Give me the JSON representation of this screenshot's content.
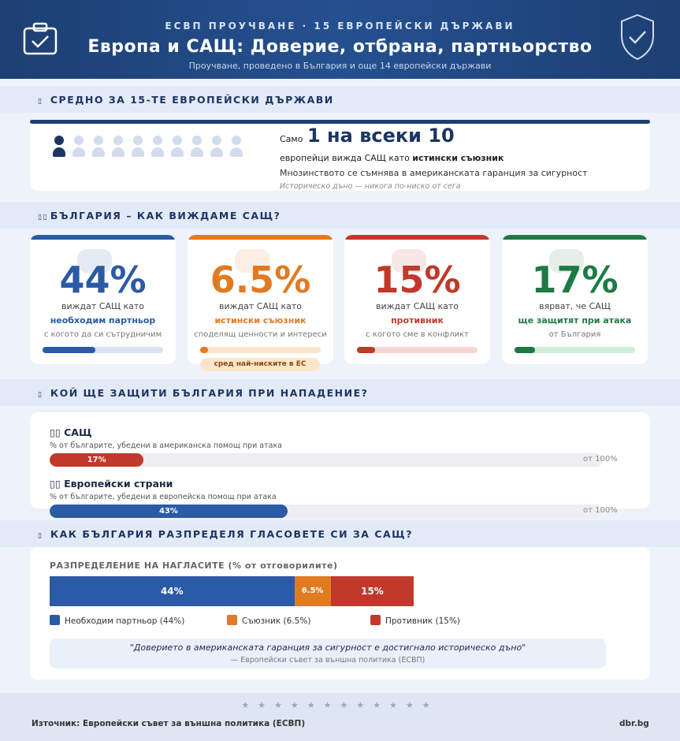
{
  "header": {
    "kicker": "ЕСВП ПРОУЧВАНЕ · 15 ЕВРОПЕЙСКИ ДЪРЖАВИ",
    "title": "Европа и САЩ: Доверие, отбрана, партньорство",
    "subtitle": "Проучване, проведено в България и още 14 европейски държави"
  },
  "section_avg": {
    "heading": "СРЕДНО ЗА 15-ТЕ ЕВРОПЕЙСКИ ДЪРЖАВИ",
    "prefix": "Само",
    "highlight": "1 на всеки 10",
    "line1_a": "европейци вижда САЩ като ",
    "line1_b": "истински съюзник",
    "line2": "Мнозинството се съмнява в американската гаранция за сигурност",
    "line3": "Историческо дъно — никога по-ниско от сега",
    "icons_filled": 1,
    "icons_total": 10
  },
  "section_bg": {
    "heading": "БЪЛГАРИЯ – КАК ВИЖДАМЕ САЩ?",
    "cards": [
      {
        "value": "44%",
        "pct": 44,
        "line1": "виждат САЩ като",
        "line2": "необходим партньор",
        "line3": "с когото да си сътрудничим",
        "color": "#2b5aa6",
        "track": "#dbe4f4"
      },
      {
        "value": "6.5%",
        "pct": 6.5,
        "line1": "виждат САЩ като",
        "line2": "истински съюзник",
        "line3": "споделящ ценности и интереси",
        "color": "#e07b22",
        "track": "#fbe6cc"
      },
      {
        "value": "15%",
        "pct": 15,
        "line1": "виждат САЩ като",
        "line2": "противник",
        "line3": "с когото сме в конфликт",
        "color": "#c0392b",
        "track": "#f6d6d3"
      },
      {
        "value": "17%",
        "pct": 17,
        "line1": "вярват, че САЩ",
        "line2": "ще защитят при атака",
        "line3": "от България",
        "color": "#1e7a45",
        "track": "#cfeedc"
      }
    ],
    "note": "сред най-ниските в ЕС"
  },
  "section_defense": {
    "heading": "КОЙ ЩЕ ЗАЩИТИ БЪЛГАРИЯ ПРИ НАПАДЕНИЕ?",
    "rows": [
      {
        "title": "САЩ",
        "sub": "% от българите, убедени в американска помощ при атака",
        "value": 17,
        "label": "17%",
        "out_of": "от 100%",
        "color": "#c0392b"
      },
      {
        "title": "Европейски страни",
        "sub": "% от българите, убедени в европейска помощ при атака",
        "value": 43,
        "label": "43%",
        "out_of": "от 100%",
        "color": "#2b5aa6"
      }
    ]
  },
  "section_votes": {
    "heading": "КАК БЪЛГАРИЯ РАЗПРЕДЕЛЯ ГЛАСОВЕТЕ СИ ЗА САЩ?",
    "chart_title": "РАЗПРЕДЕЛЕНИЕ НА НАГЛАСИТЕ (% от отговорилите)",
    "segments": [
      {
        "label": "44%",
        "value": 44,
        "legend": "Необходим партньор (44%)",
        "color": "#2b5aa6"
      },
      {
        "label": "6.5%",
        "value": 6.5,
        "legend": "Съюзник (6.5%)",
        "color": "#e07b22"
      },
      {
        "label": "15%",
        "value": 15,
        "legend": "Противник (15%)",
        "color": "#c0392b"
      }
    ],
    "quote": "\"Доверието в американската гаранция за сигурност е достигнало историческо дъно\"",
    "attribution": "— Европейски съвет за външна политика (ЕСВП)"
  },
  "chart_data": {
    "type": "bar",
    "title": "РАЗПРЕДЕЛЕНИЕ НА НАГЛАСИТЕ (% от отговорилите)",
    "categories": [
      "Необходим партньор",
      "Съюзник",
      "Противник"
    ],
    "values": [
      44,
      6.5,
      15
    ],
    "colors": [
      "#2b5aa6",
      "#e07b22",
      "#c0392b"
    ]
  },
  "footer": {
    "stars": "★★★★★★★★★★★★",
    "source": "Източник: Европейски съвет за външна политика (ЕСВП)",
    "site": "dbr.bg"
  }
}
